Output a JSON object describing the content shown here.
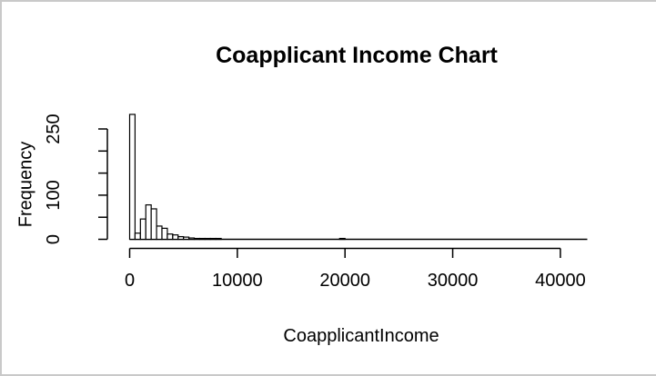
{
  "window": {
    "background": "#ffffff",
    "border_color": "#c9c9c9"
  },
  "chart_data": {
    "type": "bar",
    "subtype": "histogram",
    "title": "Coapplicant Income Chart",
    "xlabel": "CoapplicantIncome",
    "ylabel": "Frequency",
    "bin_width": 500,
    "bins": [
      {
        "x0": 0,
        "count": 283
      },
      {
        "x0": 500,
        "count": 14
      },
      {
        "x0": 1000,
        "count": 46
      },
      {
        "x0": 1500,
        "count": 78
      },
      {
        "x0": 2000,
        "count": 69
      },
      {
        "x0": 2500,
        "count": 30
      },
      {
        "x0": 3000,
        "count": 25
      },
      {
        "x0": 3500,
        "count": 12
      },
      {
        "x0": 4000,
        "count": 10
      },
      {
        "x0": 4500,
        "count": 6
      },
      {
        "x0": 5000,
        "count": 5
      },
      {
        "x0": 5500,
        "count": 3
      },
      {
        "x0": 6000,
        "count": 2
      },
      {
        "x0": 6500,
        "count": 2
      },
      {
        "x0": 7000,
        "count": 2
      },
      {
        "x0": 7500,
        "count": 2
      },
      {
        "x0": 8000,
        "count": 2
      },
      {
        "x0": 19500,
        "count": 2
      }
    ],
    "xlim": [
      0,
      42500
    ],
    "ylim": [
      0,
      250
    ],
    "x_ticks": [
      0,
      10000,
      20000,
      30000,
      40000
    ],
    "x_tick_labels": [
      "0",
      "10000",
      "20000",
      "30000",
      "40000"
    ],
    "y_ticks": [
      0,
      50,
      100,
      150,
      200,
      250
    ],
    "y_tick_labels": [
      "0",
      "",
      "100",
      "",
      "",
      "250"
    ],
    "grid": false,
    "legend": null,
    "bar_fill": "#ffffff",
    "stroke_color": "#000000",
    "text_color": "#000000"
  }
}
